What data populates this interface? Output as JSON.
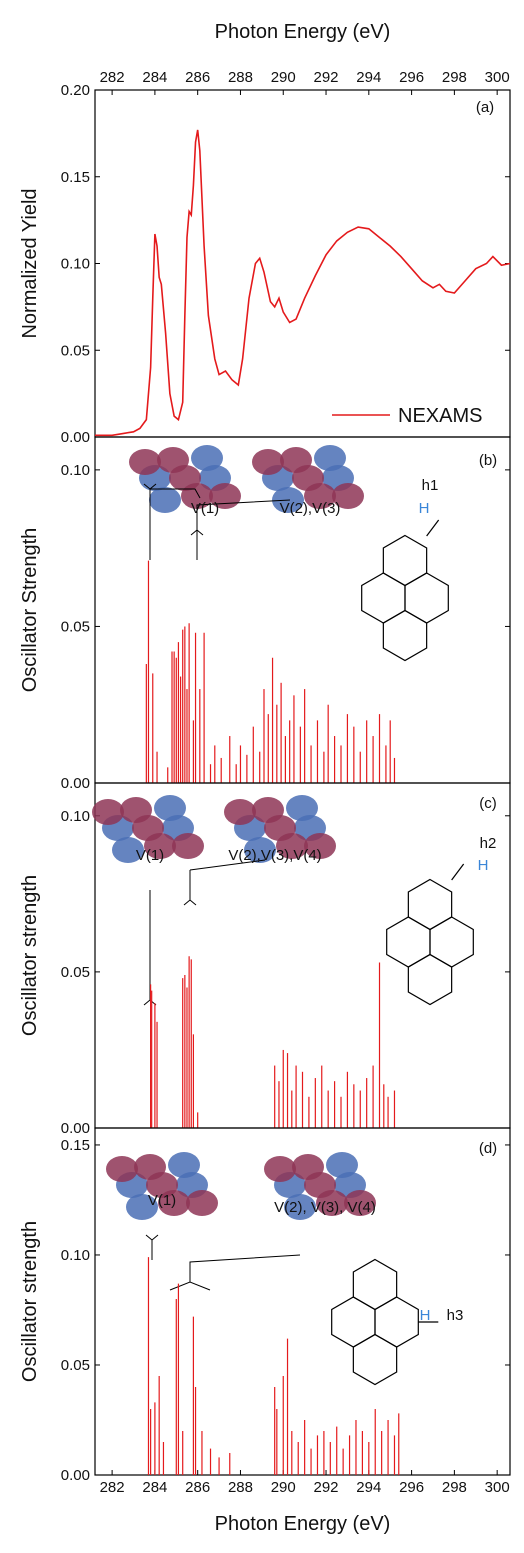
{
  "chart_data": [
    {
      "type": "line",
      "xlabel": "Photon Energy (eV)",
      "ylabel": "Normalized Yield",
      "xlim": [
        281.2,
        300.6
      ],
      "xticks": [
        282,
        284,
        286,
        288,
        290,
        292,
        294,
        296,
        298,
        300
      ],
      "ylim": [
        0,
        0.2
      ],
      "yticks": [
        {
          "value": 0,
          "label": "0.00"
        },
        {
          "value": 0.05,
          "label": "0.05"
        },
        {
          "value": 0.1,
          "label": "0.10"
        },
        {
          "value": 0.15,
          "label": "0.15"
        },
        {
          "value": 0.2,
          "label": "0.20"
        }
      ],
      "legend": "lower right",
      "annotations": [
        "(a)"
      ],
      "series": [
        {
          "name": "NEXAMS",
          "color": "#e41a1c",
          "x": [
            281.2,
            282,
            282.5,
            283,
            283.3,
            283.6,
            283.8,
            283.9,
            284.0,
            284.1,
            284.2,
            284.3,
            284.5,
            284.7,
            284.9,
            285.1,
            285.3,
            285.4,
            285.5,
            285.6,
            285.7,
            285.8,
            285.9,
            286.0,
            286.1,
            286.3,
            286.5,
            286.8,
            287.0,
            287.3,
            287.6,
            287.9,
            288.1,
            288.4,
            288.7,
            288.9,
            289.1,
            289.4,
            289.6,
            289.8,
            290.0,
            290.3,
            290.6,
            291.0,
            291.5,
            292.0,
            292.5,
            293.0,
            293.5,
            294.0,
            294.5,
            295.0,
            295.5,
            296.0,
            296.5,
            297.0,
            297.3,
            297.6,
            298.0,
            298.5,
            299.0,
            299.5,
            299.8,
            300.2,
            300.6
          ],
          "values": [
            0.001,
            0.001,
            0.002,
            0.003,
            0.005,
            0.01,
            0.04,
            0.08,
            0.117,
            0.11,
            0.092,
            0.088,
            0.06,
            0.025,
            0.012,
            0.01,
            0.02,
            0.07,
            0.115,
            0.13,
            0.128,
            0.145,
            0.17,
            0.177,
            0.165,
            0.11,
            0.07,
            0.045,
            0.036,
            0.038,
            0.033,
            0.03,
            0.045,
            0.08,
            0.1,
            0.103,
            0.095,
            0.078,
            0.075,
            0.08,
            0.072,
            0.066,
            0.068,
            0.08,
            0.093,
            0.105,
            0.113,
            0.118,
            0.121,
            0.12,
            0.115,
            0.11,
            0.104,
            0.097,
            0.09,
            0.086,
            0.088,
            0.084,
            0.083,
            0.09,
            0.097,
            0.1,
            0.104,
            0.099,
            0.1
          ]
        }
      ]
    },
    {
      "type": "stick",
      "ylabel": "Oscillator Strength",
      "xlim": [
        281.2,
        300.6
      ],
      "ylim": [
        0,
        0.1105
      ],
      "yticks": [
        {
          "value": 0,
          "label": "0.00"
        },
        {
          "value": 0.05,
          "label": "0.05"
        },
        {
          "value": 0.1,
          "label": "0.10"
        }
      ],
      "annotations": [
        "(b)",
        "V(1)",
        "V(2),V(3)",
        "h1",
        "H"
      ],
      "series": [
        {
          "color": "#e41a1c",
          "x": [
            283.6,
            283.7,
            283.9,
            284.1,
            284.6,
            284.8,
            284.9,
            285.0,
            285.1,
            285.2,
            285.3,
            285.4,
            285.5,
            285.6,
            285.8,
            285.9,
            286.1,
            286.3,
            286.6,
            286.8,
            287.1,
            287.5,
            287.8,
            288.0,
            288.3,
            288.6,
            288.9,
            289.1,
            289.3,
            289.5,
            289.7,
            289.9,
            290.1,
            290.3,
            290.5,
            290.8,
            291.0,
            291.3,
            291.6,
            291.9,
            292.1,
            292.4,
            292.7,
            293.0,
            293.3,
            293.6,
            293.9,
            294.2,
            294.5,
            294.8,
            295.0,
            295.2
          ],
          "values": [
            0.038,
            0.071,
            0.035,
            0.01,
            0.005,
            0.042,
            0.042,
            0.04,
            0.045,
            0.034,
            0.049,
            0.05,
            0.03,
            0.051,
            0.02,
            0.048,
            0.03,
            0.048,
            0.006,
            0.012,
            0.008,
            0.015,
            0.006,
            0.012,
            0.009,
            0.018,
            0.01,
            0.03,
            0.022,
            0.04,
            0.025,
            0.032,
            0.015,
            0.02,
            0.028,
            0.018,
            0.03,
            0.012,
            0.02,
            0.01,
            0.025,
            0.015,
            0.012,
            0.022,
            0.018,
            0.01,
            0.02,
            0.015,
            0.022,
            0.012,
            0.02,
            0.008
          ]
        }
      ]
    },
    {
      "type": "stick",
      "ylabel": "Oscillator strength",
      "xlim": [
        281.2,
        300.6
      ],
      "ylim": [
        0,
        0.1105
      ],
      "yticks": [
        {
          "value": 0,
          "label": "0.00"
        },
        {
          "value": 0.05,
          "label": "0.05"
        },
        {
          "value": 0.1,
          "label": "0.10"
        }
      ],
      "annotations": [
        "(c)",
        "V(1)",
        "V(2),V(3),V(4)",
        "h2",
        "H"
      ],
      "series": [
        {
          "color": "#e41a1c",
          "x": [
            283.8,
            283.85,
            284.0,
            284.1,
            285.3,
            285.4,
            285.5,
            285.6,
            285.7,
            285.8,
            286.0,
            289.6,
            289.8,
            290.0,
            290.2,
            290.4,
            290.6,
            290.9,
            291.2,
            291.5,
            291.8,
            292.1,
            292.4,
            292.7,
            293.0,
            293.3,
            293.6,
            293.9,
            294.2,
            294.5,
            294.7,
            294.9,
            295.2
          ],
          "values": [
            0.046,
            0.044,
            0.04,
            0.034,
            0.048,
            0.049,
            0.045,
            0.055,
            0.054,
            0.03,
            0.005,
            0.02,
            0.015,
            0.025,
            0.024,
            0.012,
            0.02,
            0.018,
            0.01,
            0.016,
            0.02,
            0.012,
            0.015,
            0.01,
            0.018,
            0.014,
            0.012,
            0.016,
            0.02,
            0.053,
            0.014,
            0.01,
            0.012
          ]
        }
      ]
    },
    {
      "type": "stick",
      "xlabel": "Photon Energy (eV)",
      "ylabel": "Oscillator strength",
      "xlim": [
        281.2,
        300.6
      ],
      "xticks": [
        282,
        284,
        286,
        288,
        290,
        292,
        294,
        296,
        298,
        300
      ],
      "ylim": [
        0,
        0.1577
      ],
      "yticks": [
        {
          "value": 0,
          "label": "0.00"
        },
        {
          "value": 0.05,
          "label": "0.05"
        },
        {
          "value": 0.1,
          "label": "0.10"
        },
        {
          "value": 0.15,
          "label": "0.15"
        }
      ],
      "annotations": [
        "(d)",
        "V(1)",
        "V(2), V(3), V(4)",
        "H",
        "h3"
      ],
      "series": [
        {
          "color": "#e41a1c",
          "x": [
            283.7,
            283.8,
            284.0,
            284.2,
            284.4,
            285.0,
            285.1,
            285.3,
            285.8,
            285.9,
            286.2,
            286.6,
            287.0,
            287.5,
            289.6,
            289.7,
            290.0,
            290.2,
            290.4,
            290.7,
            291.0,
            291.3,
            291.6,
            291.9,
            292.2,
            292.5,
            292.8,
            293.1,
            293.4,
            293.7,
            294.0,
            294.3,
            294.6,
            294.9,
            295.2,
            295.4
          ],
          "values": [
            0.099,
            0.03,
            0.033,
            0.045,
            0.015,
            0.08,
            0.087,
            0.02,
            0.072,
            0.04,
            0.02,
            0.012,
            0.008,
            0.01,
            0.04,
            0.03,
            0.045,
            0.062,
            0.02,
            0.015,
            0.025,
            0.012,
            0.018,
            0.02,
            0.015,
            0.022,
            0.012,
            0.018,
            0.025,
            0.02,
            0.015,
            0.03,
            0.02,
            0.025,
            0.018,
            0.028
          ]
        }
      ]
    }
  ]
}
